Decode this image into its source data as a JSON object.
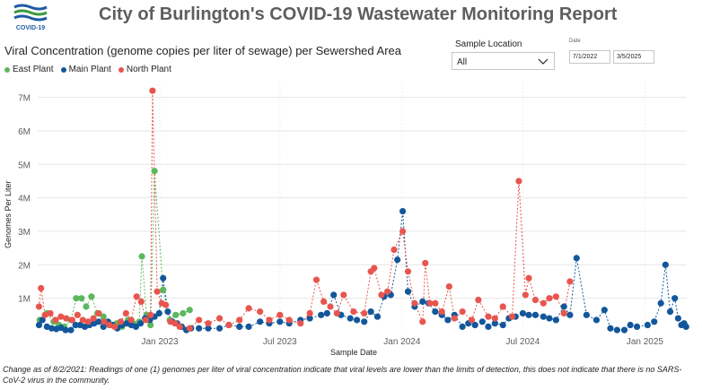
{
  "header": {
    "title": "City of Burlington's COVID-19 Wastewater Monitoring Report",
    "logo_text": "COVID-19"
  },
  "filters": {
    "location_label": "Sample Location",
    "location_value": "All",
    "date_label": "Date",
    "date_start": "7/1/2022",
    "date_end": "3/5/2025"
  },
  "footnote": "Change as of 8/2/2021: Readings of one (1) genomes per liter of viral concentration indicate that viral levels are lower than the limits of detection, this does not indicate that there is no SARS-CoV-2 virus in the community.",
  "chart_data": {
    "type": "line",
    "title": "Viral Concentration (genome copies per liter of sewage) per Sewershed Area",
    "xlabel": "Sample Date",
    "ylabel": "Genomes Per Liter",
    "ylim": [
      0,
      7500000
    ],
    "xlim": [
      "2022-07-01",
      "2025-03-05"
    ],
    "y_ticks": [
      "1M",
      "2M",
      "3M",
      "4M",
      "5M",
      "6M",
      "7M"
    ],
    "x_ticks": [
      "Jan 2023",
      "Jul 2023",
      "Jan 2024",
      "Jul 2024",
      "Jan 2025"
    ],
    "grid": true,
    "legend_position": "top-left",
    "series": [
      {
        "name": "East Plant",
        "color": "#5cb85c",
        "points": [
          [
            "2022-07-04",
            0.35
          ],
          [
            "2022-07-15",
            0.55
          ],
          [
            "2022-07-25",
            0.3
          ],
          [
            "2022-08-02",
            0.2
          ],
          [
            "2022-08-10",
            0.15
          ],
          [
            "2022-08-20",
            0.35
          ],
          [
            "2022-08-28",
            1.0
          ],
          [
            "2022-09-05",
            1.0
          ],
          [
            "2022-09-12",
            0.75
          ],
          [
            "2022-09-20",
            1.05
          ],
          [
            "2022-09-29",
            0.55
          ],
          [
            "2022-10-08",
            0.45
          ],
          [
            "2022-10-18",
            0.2
          ],
          [
            "2022-10-28",
            0.25
          ],
          [
            "2022-11-05",
            0.15
          ],
          [
            "2022-11-14",
            0.35
          ],
          [
            "2022-11-22",
            0.25
          ],
          [
            "2022-12-01",
            0.3
          ],
          [
            "2022-12-05",
            2.25
          ],
          [
            "2022-12-12",
            0.5
          ],
          [
            "2022-12-18",
            0.2
          ],
          [
            "2022-12-24",
            4.8
          ],
          [
            "2023-01-06",
            1.25
          ],
          [
            "2023-01-16",
            0.35
          ],
          [
            "2023-01-25",
            0.5
          ],
          [
            "2023-02-05",
            0.55
          ],
          [
            "2023-02-15",
            0.65
          ]
        ]
      },
      {
        "name": "Main Plant",
        "color": "#12579b",
        "points": [
          [
            "2022-07-03",
            0.2
          ],
          [
            "2022-07-08",
            0.35
          ],
          [
            "2022-07-15",
            0.15
          ],
          [
            "2022-07-22",
            0.1
          ],
          [
            "2022-07-29",
            0.08
          ],
          [
            "2022-08-05",
            0.12
          ],
          [
            "2022-08-12",
            0.05
          ],
          [
            "2022-08-20",
            0.05
          ],
          [
            "2022-08-27",
            0.2
          ],
          [
            "2022-09-03",
            0.2
          ],
          [
            "2022-09-10",
            0.15
          ],
          [
            "2022-09-17",
            0.2
          ],
          [
            "2022-09-24",
            0.25
          ],
          [
            "2022-10-01",
            0.3
          ],
          [
            "2022-10-08",
            0.15
          ],
          [
            "2022-10-15",
            0.3
          ],
          [
            "2022-10-22",
            0.2
          ],
          [
            "2022-10-29",
            0.1
          ],
          [
            "2022-11-05",
            0.2
          ],
          [
            "2022-11-12",
            0.25
          ],
          [
            "2022-11-19",
            0.2
          ],
          [
            "2022-11-26",
            0.15
          ],
          [
            "2022-12-03",
            0.25
          ],
          [
            "2022-12-10",
            0.4
          ],
          [
            "2022-12-17",
            0.35
          ],
          [
            "2022-12-24",
            0.45
          ],
          [
            "2022-12-31",
            0.55
          ],
          [
            "2023-01-06",
            1.6
          ],
          [
            "2023-01-13",
            0.6
          ],
          [
            "2023-01-20",
            0.3
          ],
          [
            "2023-01-27",
            0.25
          ],
          [
            "2023-02-03",
            0.15
          ],
          [
            "2023-02-10",
            0.05
          ],
          [
            "2023-02-17",
            0.1
          ],
          [
            "2023-03-01",
            0.1
          ],
          [
            "2023-03-15",
            0.1
          ],
          [
            "2023-04-01",
            0.1
          ],
          [
            "2023-04-15",
            0.2
          ],
          [
            "2023-05-01",
            0.15
          ],
          [
            "2023-05-15",
            0.15
          ],
          [
            "2023-06-01",
            0.3
          ],
          [
            "2023-06-15",
            0.25
          ],
          [
            "2023-07-01",
            0.3
          ],
          [
            "2023-07-15",
            0.25
          ],
          [
            "2023-08-01",
            0.35
          ],
          [
            "2023-08-15",
            0.4
          ],
          [
            "2023-09-01",
            0.5
          ],
          [
            "2023-09-10",
            0.55
          ],
          [
            "2023-09-20",
            1.1
          ],
          [
            "2023-10-01",
            0.5
          ],
          [
            "2023-10-15",
            0.4
          ],
          [
            "2023-10-25",
            0.35
          ],
          [
            "2023-11-05",
            0.3
          ],
          [
            "2023-11-15",
            0.6
          ],
          [
            "2023-11-25",
            0.45
          ],
          [
            "2023-12-05",
            1.05
          ],
          [
            "2023-12-15",
            1.1
          ],
          [
            "2023-12-25",
            2.15
          ],
          [
            "2024-01-02",
            3.6
          ],
          [
            "2024-01-10",
            1.2
          ],
          [
            "2024-01-20",
            0.75
          ],
          [
            "2024-02-01",
            0.9
          ],
          [
            "2024-02-10",
            0.85
          ],
          [
            "2024-02-20",
            0.6
          ],
          [
            "2024-03-01",
            0.5
          ],
          [
            "2024-03-10",
            0.35
          ],
          [
            "2024-03-20",
            0.5
          ],
          [
            "2024-04-01",
            0.15
          ],
          [
            "2024-04-10",
            0.25
          ],
          [
            "2024-04-20",
            0.2
          ],
          [
            "2024-05-01",
            0.3
          ],
          [
            "2024-05-10",
            0.15
          ],
          [
            "2024-05-20",
            0.25
          ],
          [
            "2024-06-01",
            0.2
          ],
          [
            "2024-06-10",
            0.4
          ],
          [
            "2024-06-20",
            0.45
          ],
          [
            "2024-07-01",
            0.55
          ],
          [
            "2024-07-10",
            0.5
          ],
          [
            "2024-07-20",
            0.5
          ],
          [
            "2024-08-01",
            0.45
          ],
          [
            "2024-08-10",
            0.4
          ],
          [
            "2024-08-20",
            0.35
          ],
          [
            "2024-09-01",
            0.75
          ],
          [
            "2024-09-10",
            0.5
          ],
          [
            "2024-09-20",
            2.2
          ],
          [
            "2024-10-05",
            0.5
          ],
          [
            "2024-10-20",
            0.35
          ],
          [
            "2024-11-01",
            0.65
          ],
          [
            "2024-11-10",
            0.1
          ],
          [
            "2024-11-20",
            0.05
          ],
          [
            "2024-12-01",
            0.05
          ],
          [
            "2024-12-10",
            0.2
          ],
          [
            "2024-12-20",
            0.15
          ],
          [
            "2025-01-05",
            0.2
          ],
          [
            "2025-01-15",
            0.3
          ],
          [
            "2025-01-25",
            0.85
          ],
          [
            "2025-02-01",
            2.0
          ],
          [
            "2025-02-08",
            0.6
          ],
          [
            "2025-02-15",
            1.0
          ],
          [
            "2025-02-20",
            0.4
          ],
          [
            "2025-02-25",
            0.2
          ],
          [
            "2025-03-01",
            0.25
          ],
          [
            "2025-03-04",
            0.15
          ]
        ]
      },
      {
        "name": "North Plant",
        "color": "#e8554e",
        "points": [
          [
            "2022-07-03",
            0.75
          ],
          [
            "2022-07-06",
            1.3
          ],
          [
            "2022-07-12",
            0.5
          ],
          [
            "2022-07-20",
            0.55
          ],
          [
            "2022-07-28",
            0.35
          ],
          [
            "2022-08-05",
            0.45
          ],
          [
            "2022-08-13",
            0.4
          ],
          [
            "2022-08-22",
            0.35
          ],
          [
            "2022-08-30",
            0.5
          ],
          [
            "2022-09-07",
            0.35
          ],
          [
            "2022-09-15",
            0.3
          ],
          [
            "2022-09-23",
            0.4
          ],
          [
            "2022-10-01",
            0.55
          ],
          [
            "2022-10-09",
            0.3
          ],
          [
            "2022-10-17",
            0.2
          ],
          [
            "2022-10-25",
            0.15
          ],
          [
            "2022-11-03",
            0.3
          ],
          [
            "2022-11-11",
            0.55
          ],
          [
            "2022-11-19",
            0.35
          ],
          [
            "2022-11-27",
            1.05
          ],
          [
            "2022-12-04",
            0.9
          ],
          [
            "2022-12-11",
            0.35
          ],
          [
            "2022-12-18",
            0.5
          ],
          [
            "2022-12-21",
            7.2
          ],
          [
            "2022-12-28",
            1.2
          ],
          [
            "2023-01-04",
            0.85
          ],
          [
            "2023-01-10",
            0.8
          ],
          [
            "2023-01-17",
            0.3
          ],
          [
            "2023-01-24",
            0.25
          ],
          [
            "2023-01-31",
            0.15
          ],
          [
            "2023-02-15",
            0.1
          ],
          [
            "2023-03-01",
            0.35
          ],
          [
            "2023-03-15",
            0.25
          ],
          [
            "2023-04-01",
            0.4
          ],
          [
            "2023-04-15",
            0.2
          ],
          [
            "2023-05-01",
            0.35
          ],
          [
            "2023-05-15",
            0.7
          ],
          [
            "2023-06-01",
            0.6
          ],
          [
            "2023-06-15",
            0.35
          ],
          [
            "2023-07-01",
            0.5
          ],
          [
            "2023-07-15",
            0.35
          ],
          [
            "2023-08-01",
            0.25
          ],
          [
            "2023-08-15",
            0.55
          ],
          [
            "2023-08-25",
            1.55
          ],
          [
            "2023-09-05",
            0.9
          ],
          [
            "2023-09-15",
            0.75
          ],
          [
            "2023-09-25",
            0.55
          ],
          [
            "2023-10-05",
            1.1
          ],
          [
            "2023-10-20",
            0.6
          ],
          [
            "2023-11-05",
            0.55
          ],
          [
            "2023-11-15",
            1.8
          ],
          [
            "2023-11-20",
            1.9
          ],
          [
            "2023-12-01",
            1.1
          ],
          [
            "2023-12-10",
            1.2
          ],
          [
            "2023-12-20",
            2.45
          ],
          [
            "2024-01-02",
            3.0
          ],
          [
            "2024-01-10",
            1.8
          ],
          [
            "2024-01-20",
            0.85
          ],
          [
            "2024-02-01",
            0.3
          ],
          [
            "2024-02-05",
            2.05
          ],
          [
            "2024-02-12",
            0.85
          ],
          [
            "2024-02-20",
            0.85
          ],
          [
            "2024-03-01",
            0.6
          ],
          [
            "2024-03-12",
            1.35
          ],
          [
            "2024-03-20",
            0.4
          ],
          [
            "2024-04-01",
            0.6
          ],
          [
            "2024-04-15",
            0.35
          ],
          [
            "2024-04-25",
            0.95
          ],
          [
            "2024-05-10",
            0.45
          ],
          [
            "2024-05-20",
            0.4
          ],
          [
            "2024-06-01",
            0.75
          ],
          [
            "2024-06-15",
            0.45
          ],
          [
            "2024-06-25",
            4.5
          ],
          [
            "2024-07-05",
            1.1
          ],
          [
            "2024-07-10",
            1.6
          ],
          [
            "2024-07-20",
            0.95
          ],
          [
            "2024-08-01",
            0.85
          ],
          [
            "2024-08-10",
            1.0
          ],
          [
            "2024-08-20",
            1.05
          ],
          [
            "2024-09-01",
            0.55
          ],
          [
            "2024-09-10",
            1.5
          ]
        ]
      }
    ]
  }
}
